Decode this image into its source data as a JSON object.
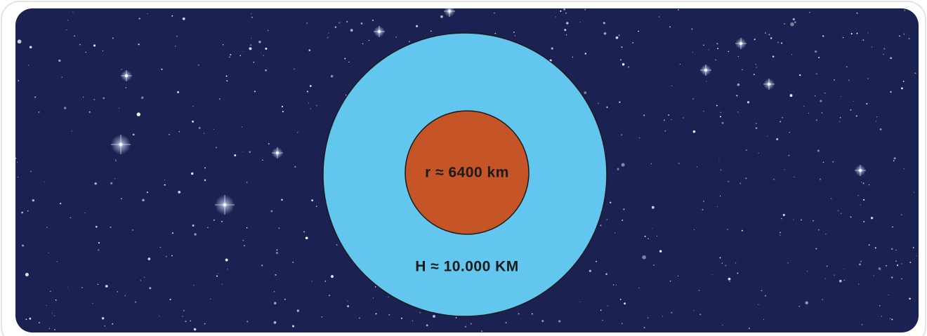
{
  "diagram": {
    "inner_label": "r ≈ 6400 km",
    "outer_label": "H ≈ 10.000 KM"
  }
}
